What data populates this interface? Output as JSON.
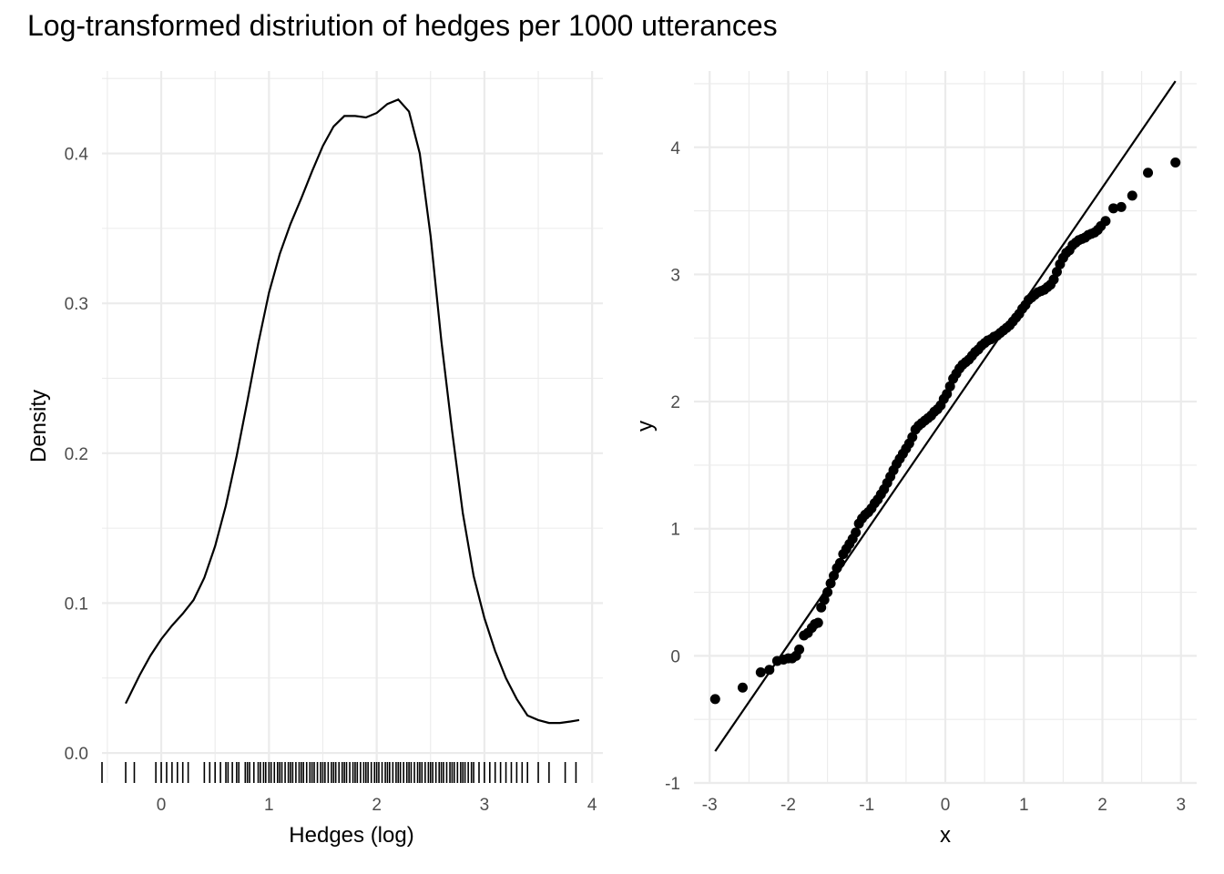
{
  "title": "Log-transformed distriution of hedges per 1000 utterances",
  "chart_data": [
    {
      "type": "line",
      "subtype": "density",
      "xlabel": "Hedges (log)",
      "ylabel": "Density",
      "xlim": [
        -0.55,
        4.1
      ],
      "ylim": [
        -0.02,
        0.455
      ],
      "x_ticks": [
        0,
        1,
        2,
        3,
        4
      ],
      "x_tick_labels": [
        "0",
        "1",
        "2",
        "3",
        "4"
      ],
      "y_ticks": [
        0.0,
        0.1,
        0.2,
        0.3,
        0.4
      ],
      "y_tick_labels": [
        "0.0",
        "0.1",
        "0.2",
        "0.3",
        "0.4"
      ],
      "grid": true,
      "curve": {
        "x": [
          -0.33,
          -0.2,
          -0.1,
          0.0,
          0.1,
          0.2,
          0.3,
          0.4,
          0.5,
          0.6,
          0.7,
          0.8,
          0.9,
          1.0,
          1.1,
          1.2,
          1.3,
          1.4,
          1.5,
          1.6,
          1.7,
          1.8,
          1.9,
          2.0,
          2.1,
          2.2,
          2.3,
          2.4,
          2.5,
          2.6,
          2.7,
          2.8,
          2.9,
          3.0,
          3.1,
          3.2,
          3.3,
          3.4,
          3.5,
          3.6,
          3.7,
          3.8,
          3.88
        ],
        "y": [
          0.033,
          0.052,
          0.065,
          0.076,
          0.085,
          0.093,
          0.102,
          0.117,
          0.138,
          0.165,
          0.198,
          0.235,
          0.273,
          0.307,
          0.333,
          0.353,
          0.37,
          0.388,
          0.405,
          0.418,
          0.425,
          0.425,
          0.424,
          0.427,
          0.433,
          0.436,
          0.428,
          0.4,
          0.345,
          0.275,
          0.215,
          0.16,
          0.118,
          0.09,
          0.068,
          0.05,
          0.036,
          0.025,
          0.022,
          0.02,
          0.02,
          0.021,
          0.022
        ]
      },
      "rug_x": [
        -0.55,
        -0.33,
        -0.25,
        -0.05,
        0.0,
        0.05,
        0.1,
        0.15,
        0.2,
        0.25,
        0.4,
        0.45,
        0.5,
        0.55,
        0.6,
        0.62,
        0.66,
        0.7,
        0.72,
        0.78,
        0.8,
        0.82,
        0.86,
        0.9,
        0.92,
        0.95,
        0.97,
        1.0,
        1.02,
        1.05,
        1.08,
        1.1,
        1.12,
        1.15,
        1.18,
        1.2,
        1.22,
        1.25,
        1.28,
        1.3,
        1.32,
        1.35,
        1.38,
        1.4,
        1.42,
        1.45,
        1.48,
        1.5,
        1.52,
        1.55,
        1.58,
        1.6,
        1.62,
        1.65,
        1.68,
        1.7,
        1.72,
        1.75,
        1.78,
        1.8,
        1.82,
        1.85,
        1.88,
        1.9,
        1.92,
        1.95,
        1.98,
        2.0,
        2.02,
        2.05,
        2.08,
        2.1,
        2.12,
        2.15,
        2.18,
        2.2,
        2.22,
        2.25,
        2.28,
        2.3,
        2.32,
        2.35,
        2.38,
        2.4,
        2.42,
        2.45,
        2.48,
        2.5,
        2.52,
        2.55,
        2.58,
        2.6,
        2.62,
        2.65,
        2.68,
        2.7,
        2.72,
        2.75,
        2.78,
        2.8,
        2.82,
        2.85,
        2.88,
        2.9,
        2.95,
        3.0,
        3.05,
        3.1,
        3.15,
        3.2,
        3.25,
        3.3,
        3.35,
        3.4,
        3.5,
        3.6,
        3.75,
        3.85
      ]
    },
    {
      "type": "scatter",
      "subtype": "qq",
      "xlabel": "x",
      "ylabel": "y",
      "xlim": [
        -3.2,
        3.2
      ],
      "ylim": [
        -1.0,
        4.6
      ],
      "x_ticks": [
        -3,
        -2,
        -1,
        0,
        1,
        2,
        3
      ],
      "x_tick_labels": [
        "-3",
        "-2",
        "-1",
        "0",
        "1",
        "2",
        "3"
      ],
      "y_ticks": [
        -1,
        0,
        1,
        2,
        3,
        4
      ],
      "y_tick_labels": [
        "-1",
        "0",
        "1",
        "2",
        "3",
        "4"
      ],
      "grid": true,
      "reference_line": {
        "x": [
          -2.93,
          2.93
        ],
        "y": [
          -0.75,
          4.52
        ]
      },
      "points": {
        "x": [
          -2.93,
          -2.58,
          -2.35,
          -2.24,
          -2.14,
          -2.06,
          -2.0,
          -1.95,
          -1.9,
          -1.86,
          -1.8,
          -1.75,
          -1.7,
          -1.66,
          -1.62,
          -1.58,
          -1.54,
          -1.5,
          -1.46,
          -1.42,
          -1.38,
          -1.34,
          -1.3,
          -1.26,
          -1.22,
          -1.18,
          -1.14,
          -1.1,
          -1.06,
          -1.02,
          -0.98,
          -0.94,
          -0.9,
          -0.86,
          -0.82,
          -0.78,
          -0.74,
          -0.7,
          -0.66,
          -0.62,
          -0.58,
          -0.54,
          -0.5,
          -0.46,
          -0.42,
          -0.38,
          -0.34,
          -0.3,
          -0.26,
          -0.22,
          -0.18,
          -0.14,
          -0.1,
          -0.06,
          -0.02,
          0.02,
          0.06,
          0.1,
          0.14,
          0.18,
          0.22,
          0.26,
          0.3,
          0.34,
          0.38,
          0.42,
          0.46,
          0.5,
          0.54,
          0.58,
          0.62,
          0.66,
          0.7,
          0.74,
          0.78,
          0.82,
          0.86,
          0.9,
          0.94,
          0.98,
          1.02,
          1.06,
          1.1,
          1.14,
          1.18,
          1.22,
          1.26,
          1.3,
          1.34,
          1.38,
          1.42,
          1.46,
          1.5,
          1.54,
          1.58,
          1.62,
          1.66,
          1.7,
          1.74,
          1.78,
          1.82,
          1.86,
          1.9,
          1.94,
          1.98,
          2.04,
          2.14,
          2.24,
          2.38,
          2.58,
          2.93
        ],
        "y": [
          -0.34,
          -0.25,
          -0.13,
          -0.11,
          -0.04,
          -0.03,
          -0.02,
          -0.02,
          0.0,
          0.05,
          0.16,
          0.18,
          0.22,
          0.25,
          0.26,
          0.38,
          0.44,
          0.5,
          0.57,
          0.63,
          0.69,
          0.73,
          0.8,
          0.84,
          0.88,
          0.92,
          0.97,
          1.04,
          1.08,
          1.11,
          1.13,
          1.16,
          1.2,
          1.23,
          1.27,
          1.31,
          1.36,
          1.41,
          1.46,
          1.51,
          1.55,
          1.59,
          1.63,
          1.67,
          1.72,
          1.78,
          1.81,
          1.83,
          1.85,
          1.87,
          1.89,
          1.92,
          1.94,
          1.97,
          2.02,
          2.06,
          2.12,
          2.18,
          2.22,
          2.26,
          2.29,
          2.31,
          2.33,
          2.36,
          2.39,
          2.41,
          2.44,
          2.46,
          2.48,
          2.49,
          2.51,
          2.52,
          2.54,
          2.56,
          2.58,
          2.6,
          2.63,
          2.66,
          2.69,
          2.73,
          2.76,
          2.8,
          2.82,
          2.84,
          2.86,
          2.87,
          2.88,
          2.9,
          2.92,
          2.96,
          3.02,
          3.08,
          3.13,
          3.17,
          3.19,
          3.23,
          3.25,
          3.27,
          3.28,
          3.29,
          3.31,
          3.32,
          3.33,
          3.35,
          3.38,
          3.42,
          3.52,
          3.53,
          3.62,
          3.8,
          3.88
        ]
      }
    }
  ]
}
